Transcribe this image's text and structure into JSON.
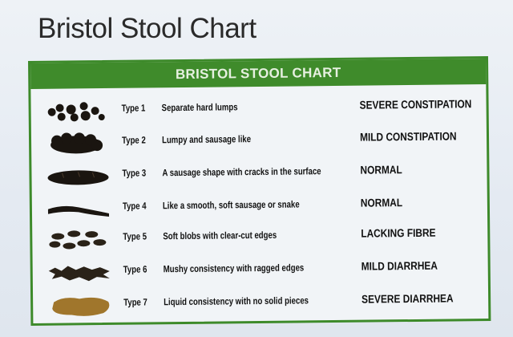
{
  "slide_title": "Bristol Stool Chart",
  "chart": {
    "header": "BRISTOL STOOL CHART",
    "header_color": "#3f8b2b",
    "rows": [
      {
        "type": "Type 1",
        "description": "Separate hard lumps",
        "category": "SEVERE CONSTIPATION",
        "icon": "hard-lumps-icon"
      },
      {
        "type": "Type 2",
        "description": "Lumpy and sausage like",
        "category": "MILD CONSTIPATION",
        "icon": "lumpy-sausage-icon"
      },
      {
        "type": "Type 3",
        "description": "A sausage shape with cracks in the surface",
        "category": "NORMAL",
        "icon": "cracked-sausage-icon"
      },
      {
        "type": "Type 4",
        "description": "Like a smooth, soft sausage or snake",
        "category": "NORMAL",
        "icon": "smooth-snake-icon"
      },
      {
        "type": "Type 5",
        "description": "Soft blobs with clear-cut edges",
        "category": "LACKING FIBRE",
        "icon": "soft-blobs-icon"
      },
      {
        "type": "Type 6",
        "description": "Mushy consistency with ragged edges",
        "category": "MILD DIARRHEA",
        "icon": "mushy-ragged-icon"
      },
      {
        "type": "Type 7",
        "description": "Liquid consistency with no solid pieces",
        "category": "SEVERE DIARRHEA",
        "icon": "liquid-icon"
      }
    ]
  }
}
